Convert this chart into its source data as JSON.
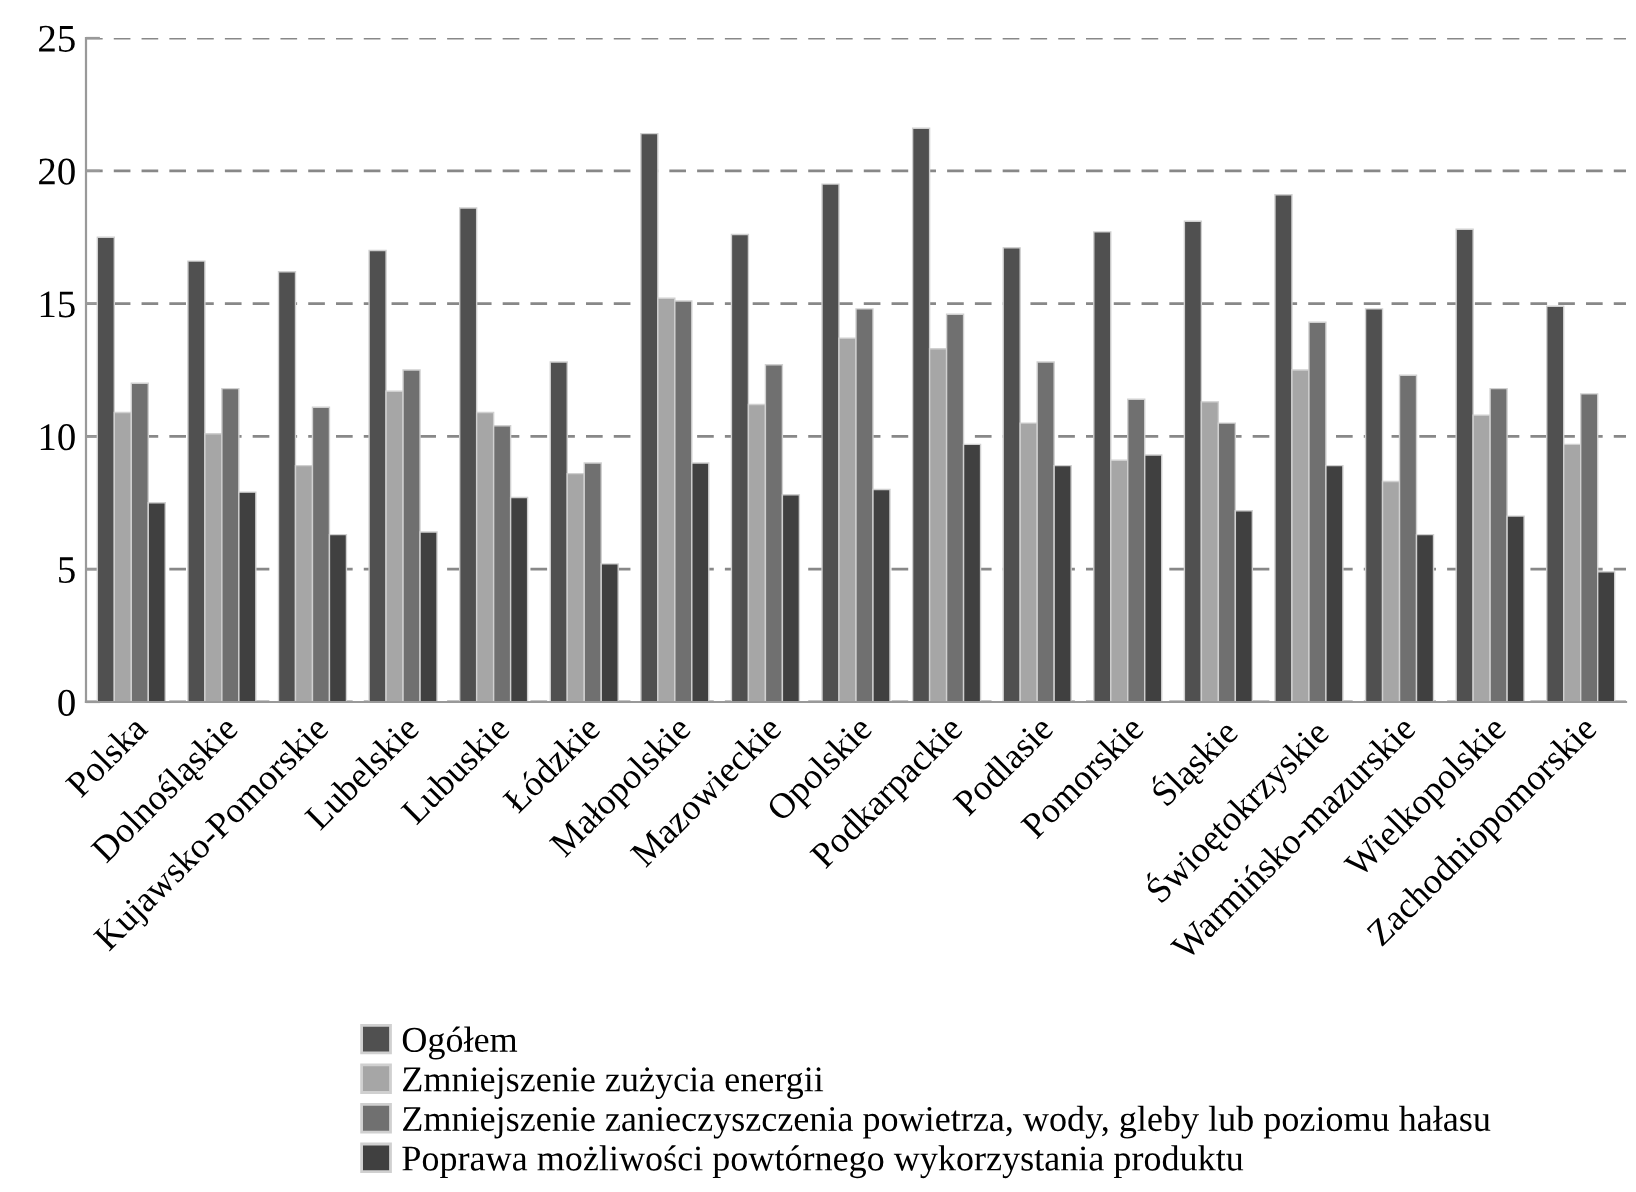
{
  "chart_data": {
    "type": "bar",
    "categories": [
      "Polska",
      "Dolnośląskie",
      "Kujawsko-Pomorskie",
      "Lubelskie",
      "Lubuskie",
      "Łódzkie",
      "Małopolskie",
      "Mazowieckie",
      "Opolskie",
      "Podkarpackie",
      "Podlasie",
      "Pomorskie",
      "Śląskie",
      "Świoętokrzyskie",
      "Warmińsko-mazurskie",
      "Wielkopolskie",
      "Zachodniopomorskie"
    ],
    "series": [
      {
        "name": "Ogółem",
        "color": "#505050",
        "values": [
          17.5,
          16.6,
          16.2,
          17.0,
          18.6,
          12.8,
          21.4,
          17.6,
          19.5,
          21.6,
          17.1,
          17.7,
          18.1,
          19.1,
          14.8,
          17.8,
          14.9
        ]
      },
      {
        "name": "Zmniejszenie zużycia energii",
        "color": "#a6a6a6",
        "values": [
          10.9,
          10.1,
          8.9,
          11.7,
          10.9,
          8.6,
          15.2,
          11.2,
          13.7,
          13.3,
          10.5,
          9.1,
          11.3,
          12.5,
          8.3,
          10.8,
          9.7
        ]
      },
      {
        "name": "Zmniejszenie zanieczyszczenia powietrza, wody, gleby lub poziomu hałasu",
        "color": "#707070",
        "values": [
          12.0,
          11.8,
          11.1,
          12.5,
          10.4,
          9.0,
          15.1,
          12.7,
          14.8,
          14.6,
          12.8,
          11.4,
          10.5,
          14.3,
          12.3,
          11.8,
          11.6
        ]
      },
      {
        "name": "Poprawa możliwości powtórnego wykorzystania produktu",
        "color": "#404040",
        "values": [
          7.5,
          7.9,
          6.3,
          6.4,
          7.7,
          5.2,
          9.0,
          7.8,
          8.0,
          9.7,
          8.9,
          9.3,
          7.2,
          8.9,
          6.3,
          7.0,
          4.9
        ]
      }
    ],
    "ylim": [
      0,
      25
    ],
    "yticks": [
      0,
      5,
      10,
      15,
      20,
      25
    ],
    "grid": "y",
    "legend": "bottom"
  }
}
